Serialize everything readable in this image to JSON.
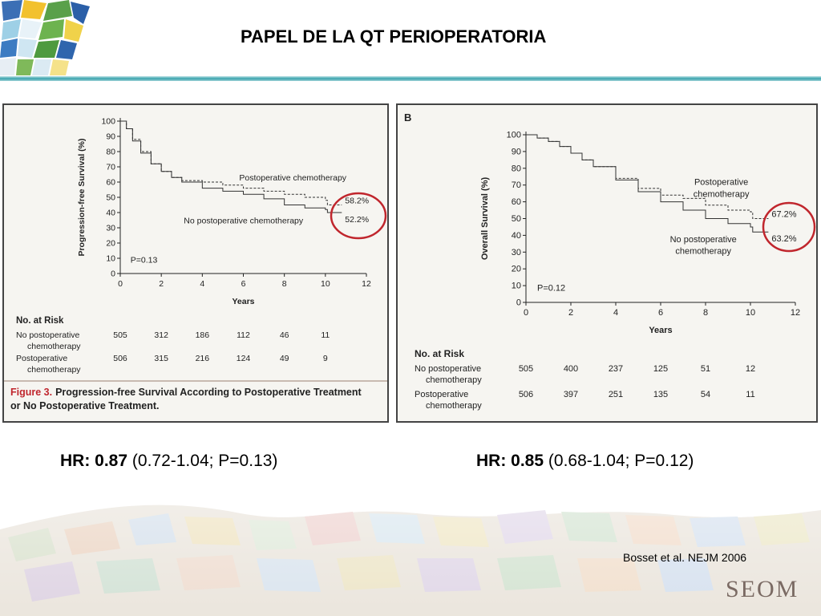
{
  "slide": {
    "title": "PAPEL DE LA QT PERIOPERATORIA",
    "citation": "Bosset et al. NEJM 2006",
    "brand": "SEOM"
  },
  "hazard_ratios": [
    {
      "label": "HR:",
      "value": "0.87",
      "ci": "(0.72-1.04; P=0.13)"
    },
    {
      "label": "HR:",
      "value": "0.85",
      "ci": "(0.68-1.04; P=0.12)"
    }
  ],
  "colors": {
    "highlight_circle": "#c0262d",
    "caption_accent": "#c0262d",
    "panel_bg": "#f6f5f1",
    "rule_teal": "#3aa3ad"
  },
  "chart_data": [
    {
      "type": "line",
      "panel_letter": "",
      "ylabel": "Progression-free Survival (%)",
      "xlabel": "Years",
      "xlim": [
        0,
        12
      ],
      "ylim": [
        0,
        100
      ],
      "xticks": [
        0,
        2,
        4,
        6,
        8,
        10,
        12
      ],
      "yticks": [
        0,
        10,
        20,
        30,
        40,
        50,
        60,
        70,
        80,
        90,
        100
      ],
      "p_value": "P=0.13",
      "series": [
        {
          "name": "Postoperative chemotherapy",
          "style": "dashed",
          "end_label": "58.2%",
          "x": [
            0,
            0.3,
            0.6,
            1,
            1.5,
            2,
            2.5,
            3,
            4,
            5,
            6,
            7,
            8,
            9,
            10,
            10.1,
            10.8
          ],
          "y": [
            100,
            95,
            88,
            80,
            72,
            67,
            63,
            61,
            60,
            58,
            56,
            54,
            52,
            50,
            48,
            45,
            45
          ]
        },
        {
          "name": "No postoperative chemotherapy",
          "style": "solid",
          "end_label": "52.2%",
          "x": [
            0,
            0.3,
            0.6,
            1,
            1.5,
            2,
            2.5,
            3,
            4,
            5,
            6,
            7,
            8,
            9,
            10,
            10.1,
            10.8
          ],
          "y": [
            100,
            95,
            87,
            79,
            72,
            67,
            63,
            60,
            56,
            54,
            52,
            49,
            45,
            43,
            42,
            40,
            40
          ]
        }
      ],
      "risk_table": {
        "heading": "No. at Risk",
        "rows": [
          {
            "label_line1": "No postoperative",
            "label_line2": "chemotherapy",
            "values": [
              "505",
              "312",
              "186",
              "112",
              "46",
              "11"
            ]
          },
          {
            "label_line1": "Postoperative",
            "label_line2": "chemotherapy",
            "values": [
              "506",
              "315",
              "216",
              "124",
              "49",
              "9"
            ]
          }
        ]
      },
      "caption_label": "Figure 3.",
      "caption_line1": "Progression-free Survival According to Postoperative Treatment",
      "caption_line2": "or No Postoperative Treatment."
    },
    {
      "type": "line",
      "panel_letter": "B",
      "ylabel": "Overall Survival (%)",
      "xlabel": "Years",
      "xlim": [
        0,
        12
      ],
      "ylim": [
        0,
        100
      ],
      "xticks": [
        0,
        2,
        4,
        6,
        8,
        10,
        12
      ],
      "yticks": [
        0,
        10,
        20,
        30,
        40,
        50,
        60,
        70,
        80,
        90,
        100
      ],
      "p_value": "P=0.12",
      "series": [
        {
          "name": "Postoperative chemotherapy",
          "label_line1": "Postoperative",
          "label_line2": "chemotherapy",
          "style": "dashed",
          "end_label": "67.2%",
          "x": [
            0,
            0.5,
            1,
            1.5,
            2,
            2.5,
            3,
            4,
            5,
            6,
            7,
            8,
            9,
            10,
            10.1,
            10.8
          ],
          "y": [
            100,
            98,
            96,
            93,
            89,
            85,
            81,
            74,
            68,
            64,
            62,
            58,
            55,
            54,
            50,
            50
          ]
        },
        {
          "name": "No postoperative chemotherapy",
          "label_line1": "No postoperative",
          "label_line2": "chemotherapy",
          "style": "solid",
          "end_label": "63.2%",
          "x": [
            0,
            0.5,
            1,
            1.5,
            2,
            2.5,
            3,
            4,
            5,
            6,
            7,
            8,
            9,
            10,
            10.1,
            10.8
          ],
          "y": [
            100,
            98,
            96,
            93,
            89,
            85,
            81,
            73,
            66,
            60,
            55,
            50,
            47,
            45,
            42,
            42
          ]
        }
      ],
      "risk_table": {
        "heading": "No. at Risk",
        "rows": [
          {
            "label_line1": "No postoperative",
            "label_line2": "chemotherapy",
            "values": [
              "505",
              "400",
              "237",
              "125",
              "51",
              "12"
            ]
          },
          {
            "label_line1": "Postoperative",
            "label_line2": "chemotherapy",
            "values": [
              "506",
              "397",
              "251",
              "135",
              "54",
              "11"
            ]
          }
        ]
      }
    }
  ]
}
